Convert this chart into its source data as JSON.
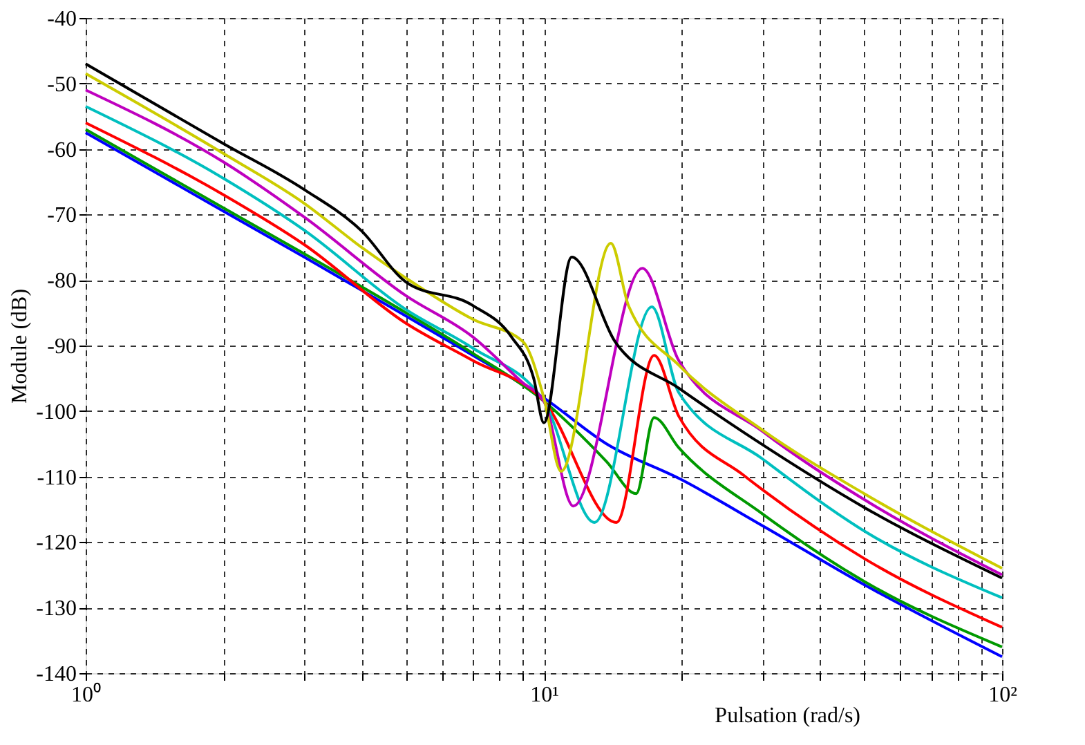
{
  "chart_data": {
    "type": "line",
    "xlabel": "Pulsation (rad/s)",
    "ylabel": "Module (dB)",
    "log": "x",
    "grid": true,
    "marker": "none",
    "line_style": "solid",
    "xlim": [
      1,
      100
    ],
    "ylim": [
      -140,
      -40
    ],
    "xticks": [
      {
        "value": 1,
        "label": "10⁰"
      },
      {
        "value": 2,
        "label": null
      },
      {
        "value": 3,
        "label": null
      },
      {
        "value": 4,
        "label": null
      },
      {
        "value": 5,
        "label": null
      },
      {
        "value": 6,
        "label": null
      },
      {
        "value": 7,
        "label": null
      },
      {
        "value": 8,
        "label": null
      },
      {
        "value": 9,
        "label": null
      },
      {
        "value": 10,
        "label": "10¹"
      },
      {
        "value": 20,
        "label": null
      },
      {
        "value": 30,
        "label": null
      },
      {
        "value": 40,
        "label": null
      },
      {
        "value": 50,
        "label": null
      },
      {
        "value": 60,
        "label": null
      },
      {
        "value": 70,
        "label": null
      },
      {
        "value": 80,
        "label": null
      },
      {
        "value": 90,
        "label": null
      },
      {
        "value": 100,
        "label": "10²"
      }
    ],
    "yticks": [
      -140,
      -130,
      -120,
      -110,
      -100,
      -90,
      -80,
      -70,
      -60,
      -50,
      -40
    ],
    "series": [
      {
        "color": "#0000ff",
        "x": [
          1,
          2,
          3,
          5,
          7,
          10,
          13.7,
          20,
          30,
          50,
          100
        ],
        "values": [
          -57.5,
          -69.5,
          -76.5,
          -85.5,
          -91.5,
          -98,
          -105,
          -110.5,
          -117.5,
          -126.5,
          -137.5
        ]
      },
      {
        "color": "#009900",
        "x": [
          1,
          2,
          3,
          5,
          7,
          10,
          13.7,
          15.9,
          17.4,
          19.7,
          30,
          50,
          100
        ],
        "values": [
          -57,
          -69,
          -76,
          -85,
          -91.2,
          -98.5,
          -107.7,
          -112.6,
          -101,
          -105.6,
          -115.7,
          -126,
          -136
        ]
      },
      {
        "color": "#ff0000",
        "x": [
          1,
          2,
          3,
          5,
          7,
          10,
          14.4,
          17.4,
          19.7,
          27.3,
          30,
          50,
          100
        ],
        "values": [
          -56,
          -67,
          -74.6,
          -86.6,
          -92.3,
          -98.5,
          -117,
          -91.5,
          -100.8,
          -109.8,
          -112,
          -122.5,
          -133
        ]
      },
      {
        "color": "#00bfbf",
        "x": [
          1,
          2,
          3,
          5,
          7,
          10,
          12.9,
          17.2,
          19.7,
          30,
          50,
          100
        ],
        "values": [
          -53.5,
          -64.5,
          -72.4,
          -84.5,
          -90.4,
          -98.5,
          -117,
          -84.1,
          -97.2,
          -107.3,
          -118.3,
          -128.5
        ]
      },
      {
        "color": "#bf00bf",
        "x": [
          1,
          2,
          3,
          5,
          7,
          9,
          10,
          11.6,
          16.4,
          19.7,
          30,
          50,
          100
        ],
        "values": [
          -51,
          -62,
          -70.4,
          -82.4,
          -88.7,
          -95.7,
          -98.5,
          -114.5,
          -78.2,
          -92.3,
          -103.1,
          -113.5,
          -125
        ]
      },
      {
        "color": "#cccc00",
        "x": [
          1,
          2,
          3,
          4,
          5,
          7,
          9,
          10,
          10.9,
          14,
          15.3,
          19.7,
          30,
          50,
          100
        ],
        "values": [
          -48.5,
          -60.7,
          -68.3,
          -75,
          -79.7,
          -86,
          -89.4,
          -98,
          -109.2,
          -74.4,
          -83.9,
          -93,
          -102.9,
          -112.6,
          -124
        ]
      },
      {
        "color": "#000000",
        "x": [
          1,
          2,
          3,
          4,
          5,
          7,
          8.5,
          9.5,
          10,
          11.5,
          14.3,
          19.7,
          29.2,
          50,
          100
        ],
        "values": [
          -47,
          -59.2,
          -66.2,
          -72.5,
          -80.3,
          -83.9,
          -88.7,
          -95,
          -101.8,
          -76.5,
          -89.4,
          -96.5,
          -104.6,
          -114.7,
          -125.5
        ]
      }
    ]
  }
}
